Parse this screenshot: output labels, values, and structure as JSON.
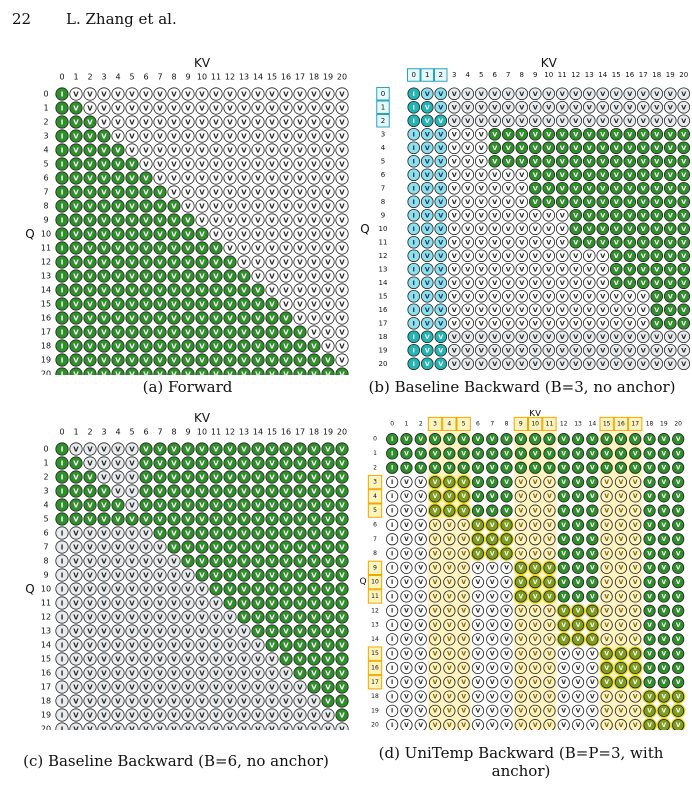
{
  "header": {
    "page_number": "22",
    "authors": "L. Zhang et al."
  },
  "grid": {
    "n": 21,
    "kv_label": "KV",
    "q_label": "Q",
    "cell_i": "I",
    "cell_v": "V",
    "anchor_block": 3
  },
  "colors": {
    "green": "#2f8f2a",
    "dark_green": "#1b5e1a",
    "white": "#ffffff",
    "gray": "#e9ecef",
    "cyan": "#8ee0ee",
    "teal": "#21b5b5",
    "yellow": "#fff3bf",
    "orange": "#f0a800",
    "olive": "#7d9e1e",
    "stroke": "#222222"
  },
  "panels": [
    {
      "id": "a",
      "caption": "(a) Forward",
      "mode": "forward"
    },
    {
      "id": "b",
      "caption": "(b) Baseline Backward (B=3, no anchor)",
      "mode": "baseline",
      "block": 3
    },
    {
      "id": "c",
      "caption": "(c) Baseline Backward (B=6, no anchor)",
      "mode": "baseline",
      "block": 6
    },
    {
      "id": "d",
      "caption": "(d) UniTemp Backward (B=P=3, with anchor)",
      "mode": "unitemp",
      "block": 3
    }
  ]
}
